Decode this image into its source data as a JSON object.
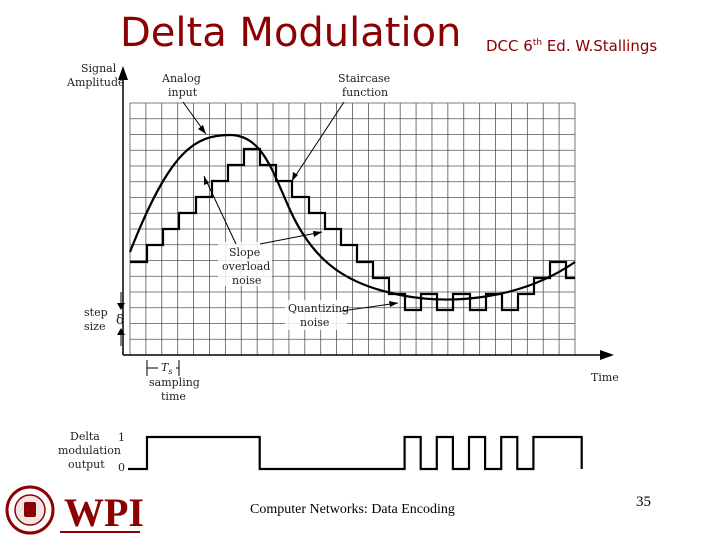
{
  "slide": {
    "title": "Delta Modulation",
    "subtitle_prefix": "DCC 6",
    "subtitle_sup": "th",
    "subtitle_suffix": " Ed. W.Stallings",
    "footer": "Computer Networks: Data Encoding",
    "page_number": "35",
    "logo_text": "WPI"
  },
  "diagram": {
    "y_axis_label_1": "Signal",
    "y_axis_label_2": "Amplitude",
    "x_axis_label": "Time",
    "analog_label_1": "Analog",
    "analog_label_2": "input",
    "staircase_label_1": "Staircase",
    "staircase_label_2": "function",
    "slope_label_1": "Slope",
    "slope_label_2": "overload",
    "slope_label_3": "noise",
    "quant_label_1": "Quantizing",
    "quant_label_2": "noise",
    "step_label_1": "step",
    "step_label_2": "size",
    "delta_symbol": "δ",
    "ts_symbol": "T",
    "ts_sub": "s",
    "sampling_label_1": "sampling",
    "sampling_label_2": "time",
    "dm_label_1": "Delta",
    "dm_label_2": "modulation",
    "dm_label_3": "output",
    "dm_high": "1",
    "dm_low": "0",
    "bits": [
      1,
      1,
      1,
      1,
      1,
      1,
      1,
      0,
      0,
      0,
      0,
      0,
      0,
      0,
      0,
      0,
      1,
      0,
      1,
      0,
      1,
      0,
      1,
      0,
      1,
      1,
      1
    ]
  },
  "colors": {
    "title": "#8b0000",
    "logo": "#8b0000"
  }
}
